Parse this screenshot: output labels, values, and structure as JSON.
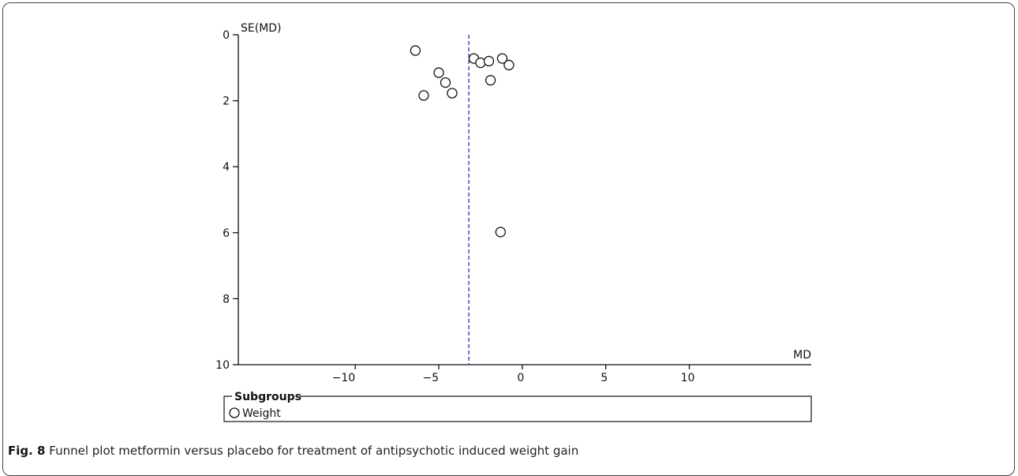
{
  "chart_data": {
    "type": "scatter",
    "xlabel": "MD",
    "ylabel": "SE(MD)",
    "xlim": [
      -17,
      17.3
    ],
    "ylim": [
      0,
      10
    ],
    "y_inverted": true,
    "xticks": [
      -10,
      -5,
      0,
      5,
      10
    ],
    "yticks": [
      0,
      2,
      4,
      6,
      8,
      10
    ],
    "reference_line": {
      "x": -3.2,
      "style": "dashed",
      "color": "#2b2bb8"
    },
    "series": [
      {
        "name": "Weight",
        "marker": "open-circle",
        "points": [
          {
            "x": -6.4,
            "y": 0.48
          },
          {
            "x": -2.9,
            "y": 0.72
          },
          {
            "x": -1.2,
            "y": 0.72
          },
          {
            "x": -2.5,
            "y": 0.85
          },
          {
            "x": -2.0,
            "y": 0.8
          },
          {
            "x": -0.8,
            "y": 0.92
          },
          {
            "x": -5.0,
            "y": 1.15
          },
          {
            "x": -4.6,
            "y": 1.45
          },
          {
            "x": -1.9,
            "y": 1.38
          },
          {
            "x": -5.9,
            "y": 1.84
          },
          {
            "x": -4.2,
            "y": 1.77
          },
          {
            "x": -1.3,
            "y": 5.98
          }
        ]
      }
    ],
    "legend": {
      "title": "Subgroups",
      "items": [
        "Weight"
      ]
    }
  },
  "caption": {
    "label": "Fig. 8",
    "text": "Funnel plot metformin versus placebo for treatment of antipsychotic induced weight gain"
  }
}
